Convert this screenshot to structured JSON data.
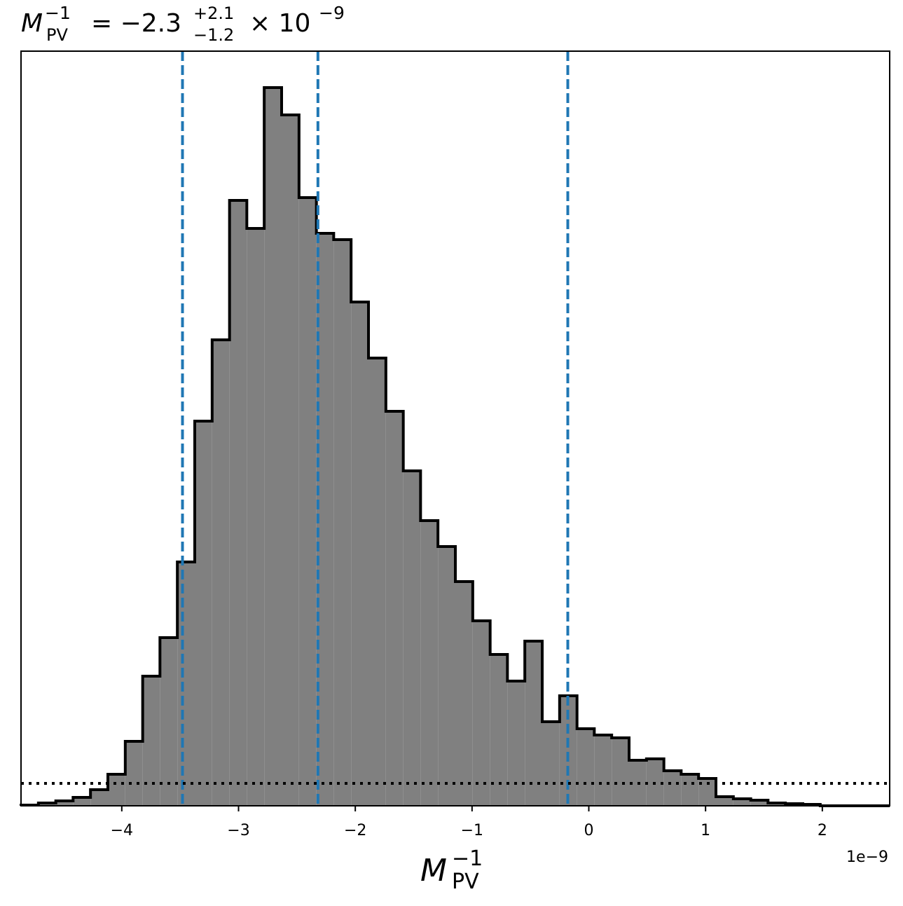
{
  "chart_data": {
    "type": "histogram",
    "title": {
      "symbol": "M",
      "symbol_sup": "−1",
      "symbol_sub": "PV",
      "value": "= −2.3",
      "plus": "+2.1",
      "minus": "−1.2",
      "base": "× 10",
      "exponent": "−9"
    },
    "xlabel": {
      "symbol": "M",
      "sup": "−1",
      "sub": "PV"
    },
    "x_offset_label": "1e−9",
    "bins": [
      -4.863,
      -4.714,
      -4.565,
      -4.417,
      -4.268,
      -4.119,
      -3.97,
      -3.821,
      -3.673,
      -3.524,
      -3.375,
      -3.226,
      -3.077,
      -2.929,
      -2.78,
      -2.631,
      -2.482,
      -2.333,
      -2.185,
      -2.036,
      -1.887,
      -1.738,
      -1.589,
      -1.441,
      -1.292,
      -1.143,
      -0.994,
      -0.845,
      -0.697,
      -0.548,
      -0.399,
      -0.25,
      -0.101,
      0.047,
      0.196,
      0.345,
      0.494,
      0.643,
      0.791,
      0.94,
      1.089,
      1.238,
      1.387,
      1.535,
      1.684,
      1.833,
      1.982,
      2.131,
      2.279,
      2.428,
      2.577
    ],
    "counts": [
      1,
      4,
      7,
      12,
      23,
      45,
      92,
      185,
      240,
      348,
      549,
      665,
      864,
      824,
      1025,
      986,
      868,
      817,
      808,
      719,
      639,
      563,
      478,
      407,
      370,
      320,
      264,
      216,
      178,
      235,
      120,
      157,
      110,
      101,
      97,
      65,
      67,
      50,
      45,
      39,
      13,
      10,
      8,
      4,
      3,
      2,
      0,
      0,
      0,
      0
    ],
    "color": "#808080",
    "edge_color": "#000000",
    "vlines": [
      -3.48,
      -2.32,
      -0.18
    ],
    "vline_color": "#1f77b4",
    "hline": 32,
    "hline_color": "#000000",
    "xlim": [
      -4.863,
      2.577
    ],
    "ylim": [
      0,
      1077
    ],
    "xticks": [
      {
        "value": -4,
        "label": "−4"
      },
      {
        "value": -3,
        "label": "−3"
      },
      {
        "value": -2,
        "label": "−2"
      },
      {
        "value": -1,
        "label": "−1"
      },
      0,
      1,
      2
    ]
  }
}
